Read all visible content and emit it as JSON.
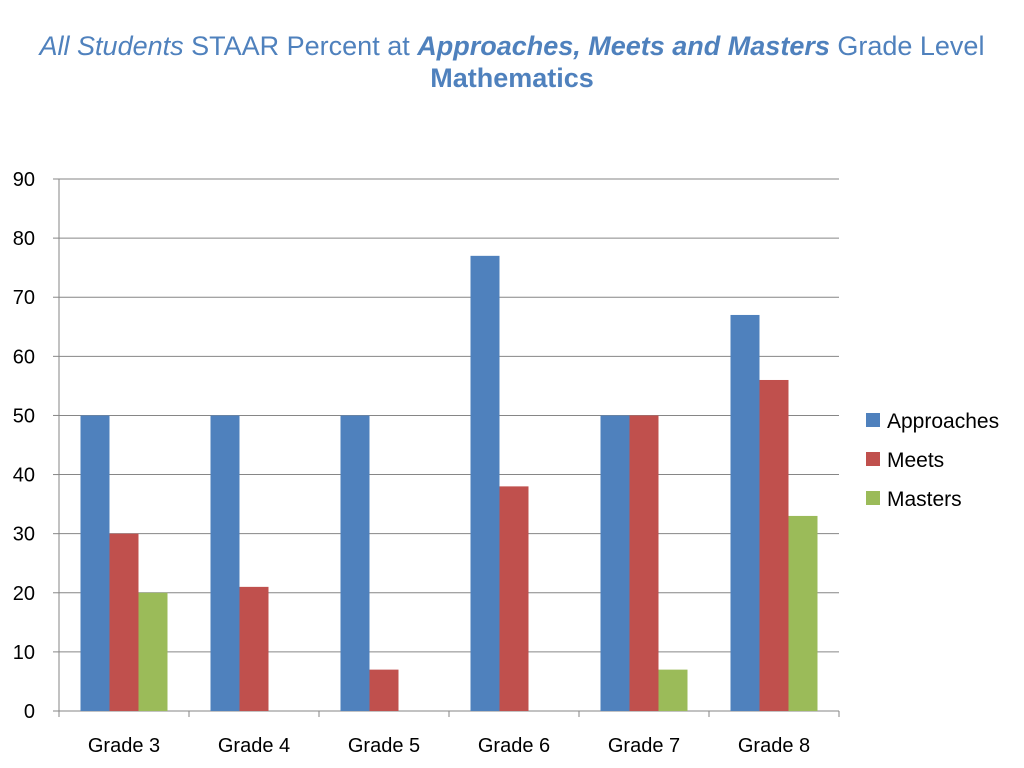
{
  "title": {
    "part1": "All Students",
    "part2": " STAAR Percent at ",
    "part3": "Approaches, Meets and Masters",
    "part4": " Grade Level",
    "line2": "Mathematics"
  },
  "chart_data": {
    "type": "bar",
    "categories": [
      "Grade 3",
      "Grade 4",
      "Grade 5",
      "Grade 6",
      "Grade 7",
      "Grade 8"
    ],
    "series": [
      {
        "name": "Approaches",
        "values": [
          50,
          50,
          50,
          77,
          50,
          67
        ],
        "color": "#4F81BD"
      },
      {
        "name": "Meets",
        "values": [
          30,
          21,
          7,
          38,
          50,
          56
        ],
        "color": "#C0504D"
      },
      {
        "name": "Masters",
        "values": [
          20,
          null,
          null,
          null,
          7,
          33
        ],
        "color": "#9BBB59"
      }
    ],
    "ylim": [
      0,
      90
    ],
    "yticks": [
      0,
      10,
      20,
      30,
      40,
      50,
      60,
      70,
      80,
      90
    ],
    "grid": true,
    "legend": "right"
  }
}
